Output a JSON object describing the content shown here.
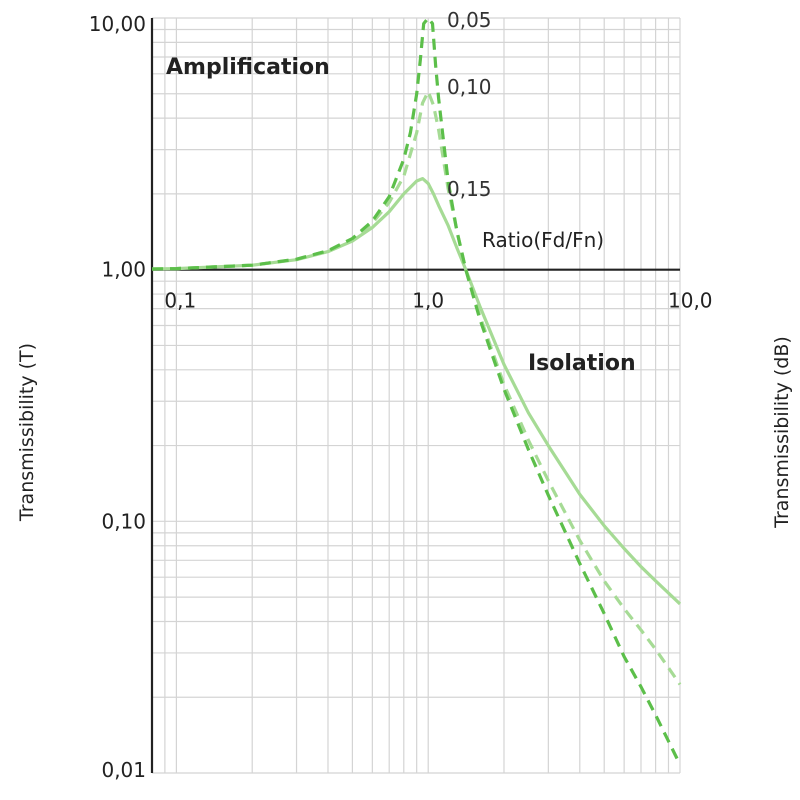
{
  "chart_data": {
    "type": "line",
    "title": "",
    "xlabel": "Ratio(Fd/Fn)",
    "ylabel": "Transmissibility (T)",
    "ylabel_right": "Transmissibility (dB)",
    "x_scale": "log",
    "y_scale": "log",
    "xlim": [
      0.08,
      10.0
    ],
    "ylim": [
      0.01,
      10.0
    ],
    "grid": true,
    "x_ticks": [
      {
        "value": 0.1,
        "label": "0,1"
      },
      {
        "value": 1.0,
        "label": "1,0"
      },
      {
        "value": 10.0,
        "label": "10,0"
      }
    ],
    "y_ticks": [
      {
        "value": 10.0,
        "label": "10,00"
      },
      {
        "value": 1.0,
        "label": "1,00"
      },
      {
        "value": 0.1,
        "label": "0,10"
      },
      {
        "value": 0.01,
        "label": "0,01"
      }
    ],
    "annotations": {
      "amplification": "Amplification",
      "isolation": "Isolation"
    },
    "series": [
      {
        "name": "0,05",
        "style": "dashed",
        "color": "#5cbf4a",
        "x": [
          0.08,
          0.1,
          0.2,
          0.3,
          0.4,
          0.5,
          0.6,
          0.7,
          0.8,
          0.85,
          0.9,
          0.93,
          0.96,
          1.0,
          1.04,
          1.07,
          1.1,
          1.2,
          1.3,
          1.41,
          1.6,
          2.0,
          2.5,
          3.0,
          4.0,
          5.0,
          6.0,
          7.0,
          8.0,
          10.0
        ],
        "y": [
          1.006,
          1.01,
          1.042,
          1.1,
          1.19,
          1.33,
          1.56,
          1.95,
          2.75,
          3.5,
          5.0,
          6.8,
          9.5,
          10.0,
          9.5,
          6.5,
          4.8,
          2.25,
          1.42,
          1.0,
          0.64,
          0.335,
          0.193,
          0.127,
          0.068,
          0.043,
          0.029,
          0.022,
          0.017,
          0.0108
        ]
      },
      {
        "name": "0,10",
        "style": "dashed",
        "color": "#a6db95",
        "x": [
          0.08,
          0.1,
          0.2,
          0.3,
          0.4,
          0.5,
          0.6,
          0.7,
          0.8,
          0.9,
          0.95,
          1.0,
          1.05,
          1.1,
          1.2,
          1.3,
          1.41,
          1.6,
          2.0,
          2.5,
          3.0,
          4.0,
          5.0,
          6.0,
          7.0,
          8.0,
          10.0
        ],
        "y": [
          1.006,
          1.01,
          1.042,
          1.098,
          1.187,
          1.32,
          1.53,
          1.85,
          2.35,
          3.5,
          4.6,
          5.1,
          4.5,
          3.6,
          2.1,
          1.43,
          1.0,
          0.66,
          0.35,
          0.21,
          0.145,
          0.084,
          0.058,
          0.045,
          0.037,
          0.031,
          0.0225
        ]
      },
      {
        "name": "0,15",
        "style": "solid",
        "color": "#a6db95",
        "x": [
          0.08,
          0.1,
          0.2,
          0.3,
          0.4,
          0.5,
          0.6,
          0.7,
          0.8,
          0.9,
          0.95,
          1.0,
          1.05,
          1.1,
          1.2,
          1.3,
          1.41,
          1.6,
          2.0,
          2.5,
          3.0,
          4.0,
          5.0,
          6.0,
          7.0,
          8.0,
          10.0
        ],
        "y": [
          1.006,
          1.01,
          1.042,
          1.095,
          1.18,
          1.3,
          1.47,
          1.7,
          2.0,
          2.25,
          2.3,
          2.2,
          2.0,
          1.8,
          1.5,
          1.22,
          1.0,
          0.72,
          0.42,
          0.27,
          0.2,
          0.128,
          0.096,
          0.078,
          0.066,
          0.058,
          0.047
        ]
      }
    ]
  }
}
